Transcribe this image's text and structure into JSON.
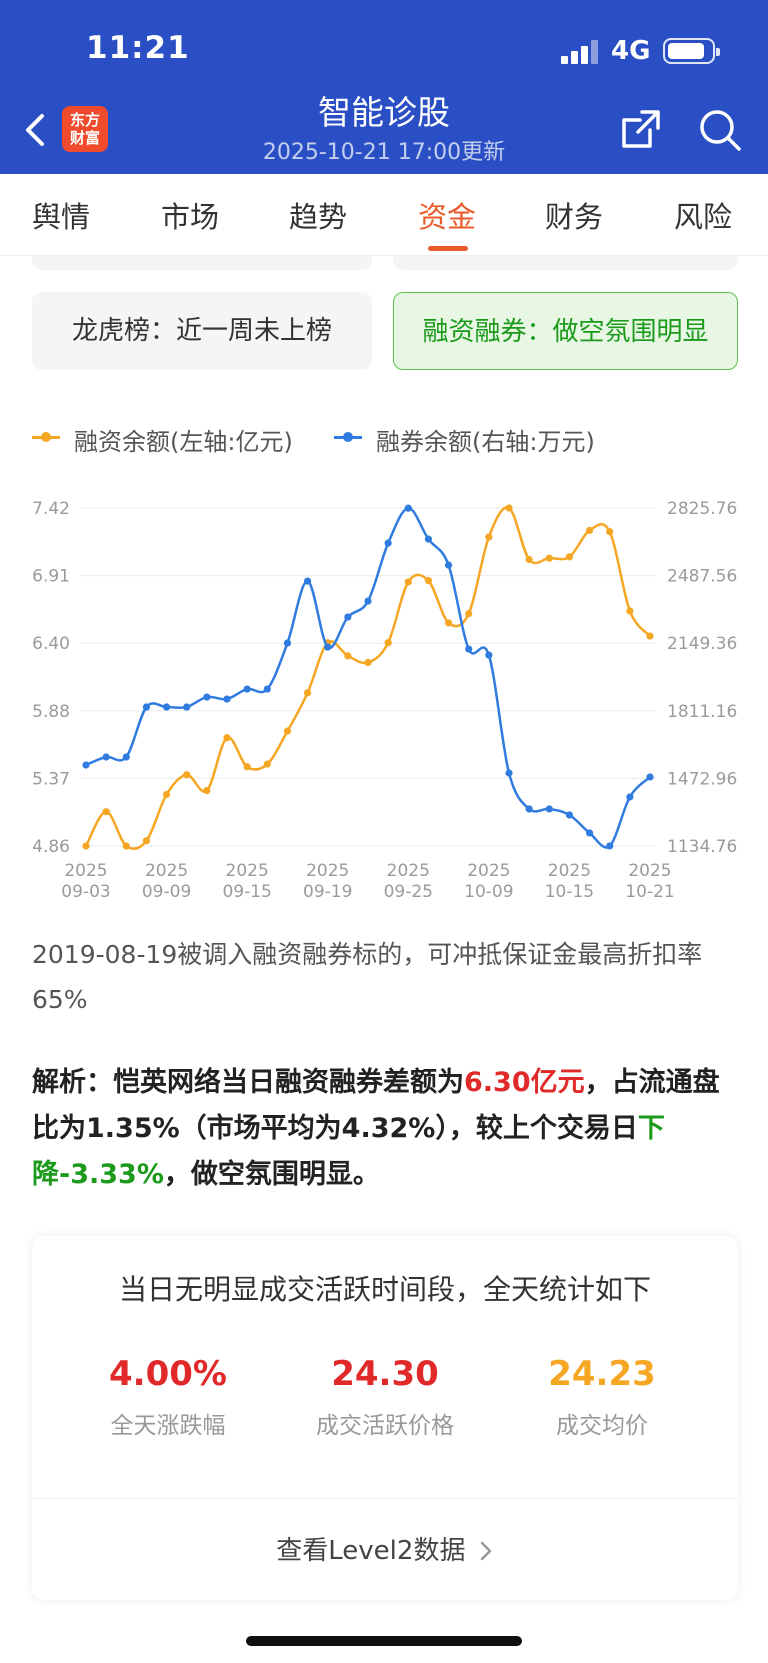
{
  "status_bar": {
    "time": "11:21",
    "network": "4G"
  },
  "header": {
    "logo_line1": "东方",
    "logo_line2": "财富",
    "title": "智能诊股",
    "update_time": "2025-10-21 17:00更新",
    "icons": [
      "back-icon",
      "share-icon",
      "search-icon"
    ]
  },
  "tabs": [
    {
      "label": "舆情",
      "active": false
    },
    {
      "label": "市场",
      "active": false
    },
    {
      "label": "趋势",
      "active": false
    },
    {
      "label": "资金",
      "active": true
    },
    {
      "label": "财务",
      "active": false
    },
    {
      "label": "风险",
      "active": false
    }
  ],
  "info_boxes": {
    "dragon_tiger": "龙虎榜：近一周未上榜",
    "margin": "融资融券：做空氛围明显"
  },
  "colors": {
    "header": "#2a4fc4",
    "accent": "#ea5a2a",
    "orange": "#f5a623",
    "blue": "#2f7be0",
    "red": "#e02a2a",
    "green": "#1b9a1b"
  },
  "chart_data": {
    "type": "line",
    "legend": [
      "融资余额(左轴:亿元)",
      "融券余额(右轴:万元)"
    ],
    "x": [
      "2025-09-03",
      "2025-09-04",
      "2025-09-05",
      "2025-09-08",
      "2025-09-09",
      "2025-09-10",
      "2025-09-11",
      "2025-09-12",
      "2025-09-15",
      "2025-09-16",
      "2025-09-17",
      "2025-09-18",
      "2025-09-19",
      "2025-09-22",
      "2025-09-23",
      "2025-09-24",
      "2025-09-25",
      "2025-09-26",
      "2025-09-29",
      "2025-09-30",
      "2025-10-09",
      "2025-10-10",
      "2025-10-13",
      "2025-10-14",
      "2025-10-15",
      "2025-10-16",
      "2025-10-17",
      "2025-10-20",
      "2025-10-21"
    ],
    "x_tick_labels": [
      [
        "2025",
        "09-03"
      ],
      [
        "2025",
        "09-09"
      ],
      [
        "2025",
        "09-15"
      ],
      [
        "2025",
        "09-19"
      ],
      [
        "2025",
        "09-25"
      ],
      [
        "2025",
        "10-09"
      ],
      [
        "2025",
        "10-15"
      ],
      [
        "2025",
        "10-21"
      ]
    ],
    "series": [
      {
        "name": "融资余额(左轴:亿元)",
        "axis": "left",
        "values": [
          4.86,
          5.12,
          4.86,
          4.9,
          5.25,
          5.4,
          5.28,
          5.68,
          5.46,
          5.48,
          5.73,
          6.02,
          6.4,
          6.3,
          6.25,
          6.4,
          6.86,
          6.87,
          6.55,
          6.62,
          7.2,
          7.42,
          7.03,
          7.04,
          7.05,
          7.25,
          7.24,
          6.64,
          6.45
        ]
      },
      {
        "name": "融券余额(右轴:万元)",
        "axis": "right",
        "values": [
          1540,
          1580,
          1580,
          1830,
          1830,
          1830,
          1880,
          1870,
          1920,
          1920,
          2150,
          2460,
          2130,
          2280,
          2360,
          2650,
          2825,
          2670,
          2540,
          2120,
          2090,
          1500,
          1320,
          1320,
          1290,
          1200,
          1135,
          1380,
          1480
        ]
      }
    ],
    "y_left": {
      "ticks": [
        "7.42",
        "6.91",
        "6.40",
        "5.88",
        "5.37",
        "4.86"
      ],
      "range": [
        4.86,
        7.42
      ]
    },
    "y_right": {
      "ticks": [
        "2825.76",
        "2487.56",
        "2149.36",
        "1811.16",
        "1472.96",
        "1134.76"
      ],
      "range": [
        1134.76,
        2825.76
      ]
    },
    "grid": true
  },
  "text": {
    "note": "2019-08-19被调入融资融券标的，可冲抵保证金最高折扣率65%",
    "analysis_prefix": "解析：恺英网络当日融资融券差额为",
    "analysis_amount": "6.30亿元",
    "analysis_mid": "，占流通盘比为1.35%（市场平均为4.32%），较上个交易日",
    "analysis_change": "下降-3.33%",
    "analysis_suffix": "，做空氛围明显。"
  },
  "stats": {
    "title": "当日无明显成交活跃时间段，全天统计如下",
    "items": [
      {
        "value": "4.00%",
        "label": "全天涨跌幅",
        "color": "#e02a2a"
      },
      {
        "value": "24.30",
        "label": "成交活跃价格",
        "color": "#e02a2a"
      },
      {
        "value": "24.23",
        "label": "成交均价",
        "color": "#f5a623"
      }
    ],
    "link": "查看Level2数据",
    "link_icon": "chevron-right-icon"
  }
}
